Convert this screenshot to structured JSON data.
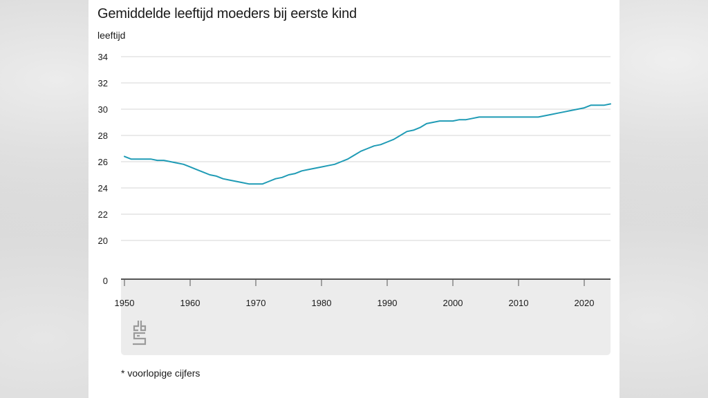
{
  "chart_data": {
    "type": "line",
    "title": "Gemiddelde leeftijd moeders bij eerste kind",
    "ylabel": "leeftijd",
    "xlabel": "",
    "footnote": "* voorlopige cijfers",
    "ylim": [
      20,
      34
    ],
    "y_break_zero": "0",
    "yticks": [
      "20",
      "22",
      "24",
      "26",
      "28",
      "30",
      "32",
      "34"
    ],
    "xlim": [
      1950,
      2024
    ],
    "xticks": [
      "1950",
      "1960",
      "1970",
      "1980",
      "1990",
      "2000",
      "2010",
      "2020"
    ],
    "line_color": "#1f9bb5",
    "series": [
      {
        "name": "Gemiddelde leeftijd moeders bij eerste kind",
        "x": [
          1950,
          1951,
          1952,
          1953,
          1954,
          1955,
          1956,
          1957,
          1958,
          1959,
          1960,
          1961,
          1962,
          1963,
          1964,
          1965,
          1966,
          1967,
          1968,
          1969,
          1970,
          1971,
          1972,
          1973,
          1974,
          1975,
          1976,
          1977,
          1978,
          1979,
          1980,
          1981,
          1982,
          1983,
          1984,
          1985,
          1986,
          1987,
          1988,
          1989,
          1990,
          1991,
          1992,
          1993,
          1994,
          1995,
          1996,
          1997,
          1998,
          1999,
          2000,
          2001,
          2002,
          2003,
          2004,
          2005,
          2006,
          2007,
          2008,
          2009,
          2010,
          2011,
          2012,
          2013,
          2014,
          2015,
          2016,
          2017,
          2018,
          2019,
          2020,
          2021,
          2022,
          2023,
          2024
        ],
        "values": [
          26.4,
          26.2,
          26.2,
          26.2,
          26.2,
          26.1,
          26.1,
          26.0,
          25.9,
          25.8,
          25.6,
          25.4,
          25.2,
          25.0,
          24.9,
          24.7,
          24.6,
          24.5,
          24.4,
          24.3,
          24.3,
          24.3,
          24.5,
          24.7,
          24.8,
          25.0,
          25.1,
          25.3,
          25.4,
          25.5,
          25.6,
          25.7,
          25.8,
          26.0,
          26.2,
          26.5,
          26.8,
          27.0,
          27.2,
          27.3,
          27.5,
          27.7,
          28.0,
          28.3,
          28.4,
          28.6,
          28.9,
          29.0,
          29.1,
          29.1,
          29.1,
          29.2,
          29.2,
          29.3,
          29.4,
          29.4,
          29.4,
          29.4,
          29.4,
          29.4,
          29.4,
          29.4,
          29.4,
          29.4,
          29.5,
          29.6,
          29.7,
          29.8,
          29.9,
          30.0,
          30.1,
          30.3,
          30.3,
          30.3,
          30.4
        ]
      }
    ]
  }
}
